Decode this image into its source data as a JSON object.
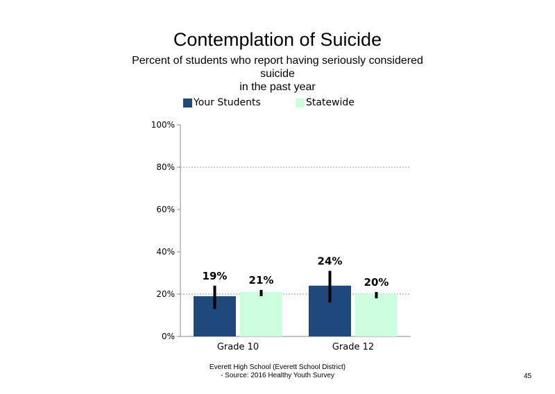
{
  "chart_data": {
    "type": "bar",
    "title": "Contemplation of Suicide",
    "subtitle_lines": [
      "Percent of students who report having seriously considered",
      "suicide",
      "in the past year"
    ],
    "categories": [
      "Grade 10",
      "Grade 12"
    ],
    "series": [
      {
        "name": "Your Students",
        "values": [
          19,
          24
        ],
        "error_low": [
          13,
          16
        ],
        "error_high": [
          24,
          31
        ],
        "labels": [
          "19%",
          "24%"
        ],
        "color": "#1f497d"
      },
      {
        "name": "Statewide",
        "values": [
          21,
          20
        ],
        "error_low": [
          19,
          18
        ],
        "error_high": [
          22,
          21
        ],
        "labels": [
          "21%",
          "20%"
        ],
        "color": "#ccffdd"
      }
    ],
    "ylim": [
      0,
      100
    ],
    "yticks": [
      0,
      20,
      40,
      60,
      80,
      100
    ],
    "ytick_labels": [
      "0%",
      "20%",
      "40%",
      "60%",
      "80%",
      "100%"
    ],
    "gridlines": [
      20,
      80
    ],
    "legend_position": "top"
  },
  "footer": {
    "line1": "Everett High School (Everett School District)",
    "line2": "- Source: 2016 Healthy Youth Survey"
  },
  "page_number": "45"
}
